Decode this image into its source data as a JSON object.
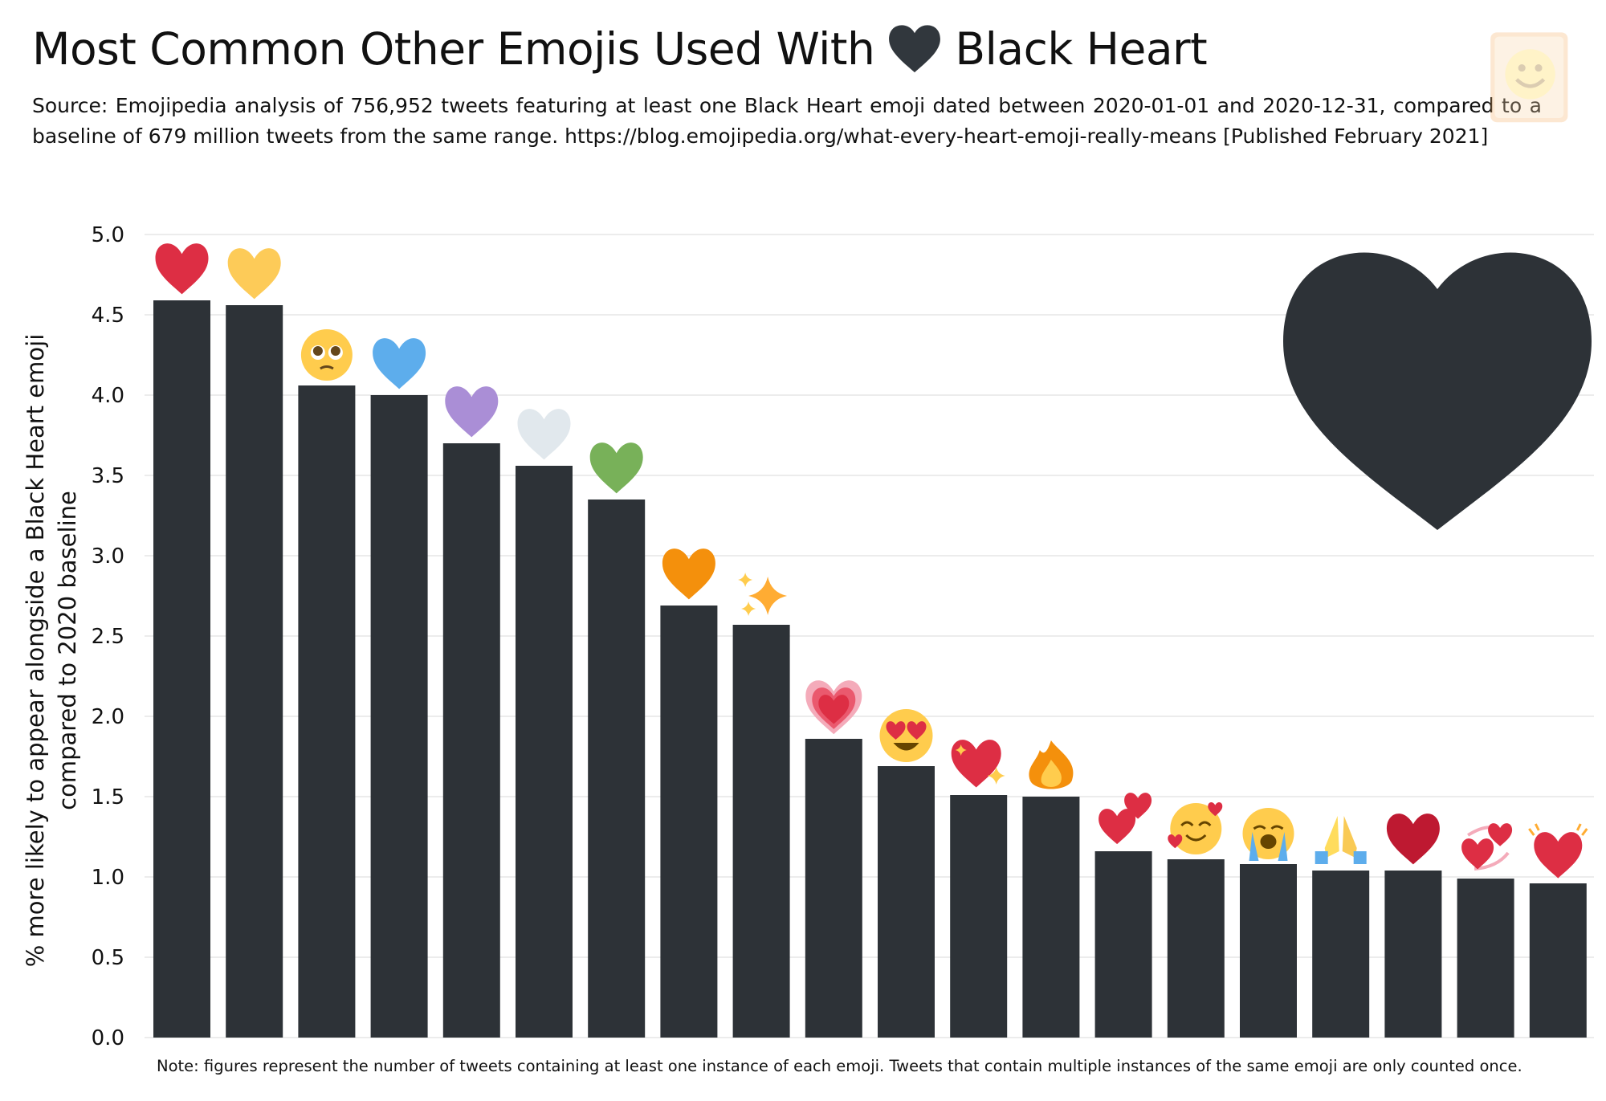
{
  "title": {
    "before": "Most Common Other Emojis Used With",
    "after": "Black Heart"
  },
  "subtitle": "Source: Emojipedia analysis of 756,952 tweets featuring at least one Black Heart emoji dated between 2020-01-01 and 2020-12-31, compared to a baseline of 679 million tweets from the same range. https://blog.emojipedia.org/what-every-heart-emoji-really-means [Published February 2021]",
  "note": "Note: figures represent the number of tweets containing at least one instance of each emoji. Tweets that contain multiple instances of the same emoji are only counted once.",
  "colors": {
    "bar": "#2d3237",
    "grid": "#e6e6e6",
    "heart_dark": "#31373d"
  },
  "chart_data": {
    "type": "bar",
    "ylabel": "% more likely to appear alongside a Black Heart emoji compared to 2020 baseline",
    "ylabel_lines": [
      "% more likely to appear alongside a Black Heart emoji",
      "compared to 2020 baseline"
    ],
    "ylim": [
      0,
      5
    ],
    "yticks": [
      "0.0",
      "0.5",
      "1.0",
      "1.5",
      "2.0",
      "2.5",
      "3.0",
      "3.5",
      "4.0",
      "4.5",
      "5.0"
    ],
    "grid": true,
    "categories": [
      "red-heart",
      "yellow-heart",
      "pleading-face",
      "blue-heart",
      "purple-heart",
      "white-heart",
      "green-heart",
      "orange-heart",
      "sparkles",
      "growing-heart",
      "heart-eyes",
      "sparkling-heart",
      "fire",
      "two-hearts",
      "smiling-face-with-hearts",
      "loudly-crying-face",
      "folded-hands",
      "heavy-heart",
      "revolving-hearts",
      "beating-heart"
    ],
    "values": [
      4.59,
      4.56,
      4.06,
      4.0,
      3.7,
      3.56,
      3.35,
      2.69,
      2.57,
      1.86,
      1.69,
      1.51,
      1.5,
      1.16,
      1.11,
      1.08,
      1.04,
      1.04,
      0.99,
      0.96
    ]
  }
}
